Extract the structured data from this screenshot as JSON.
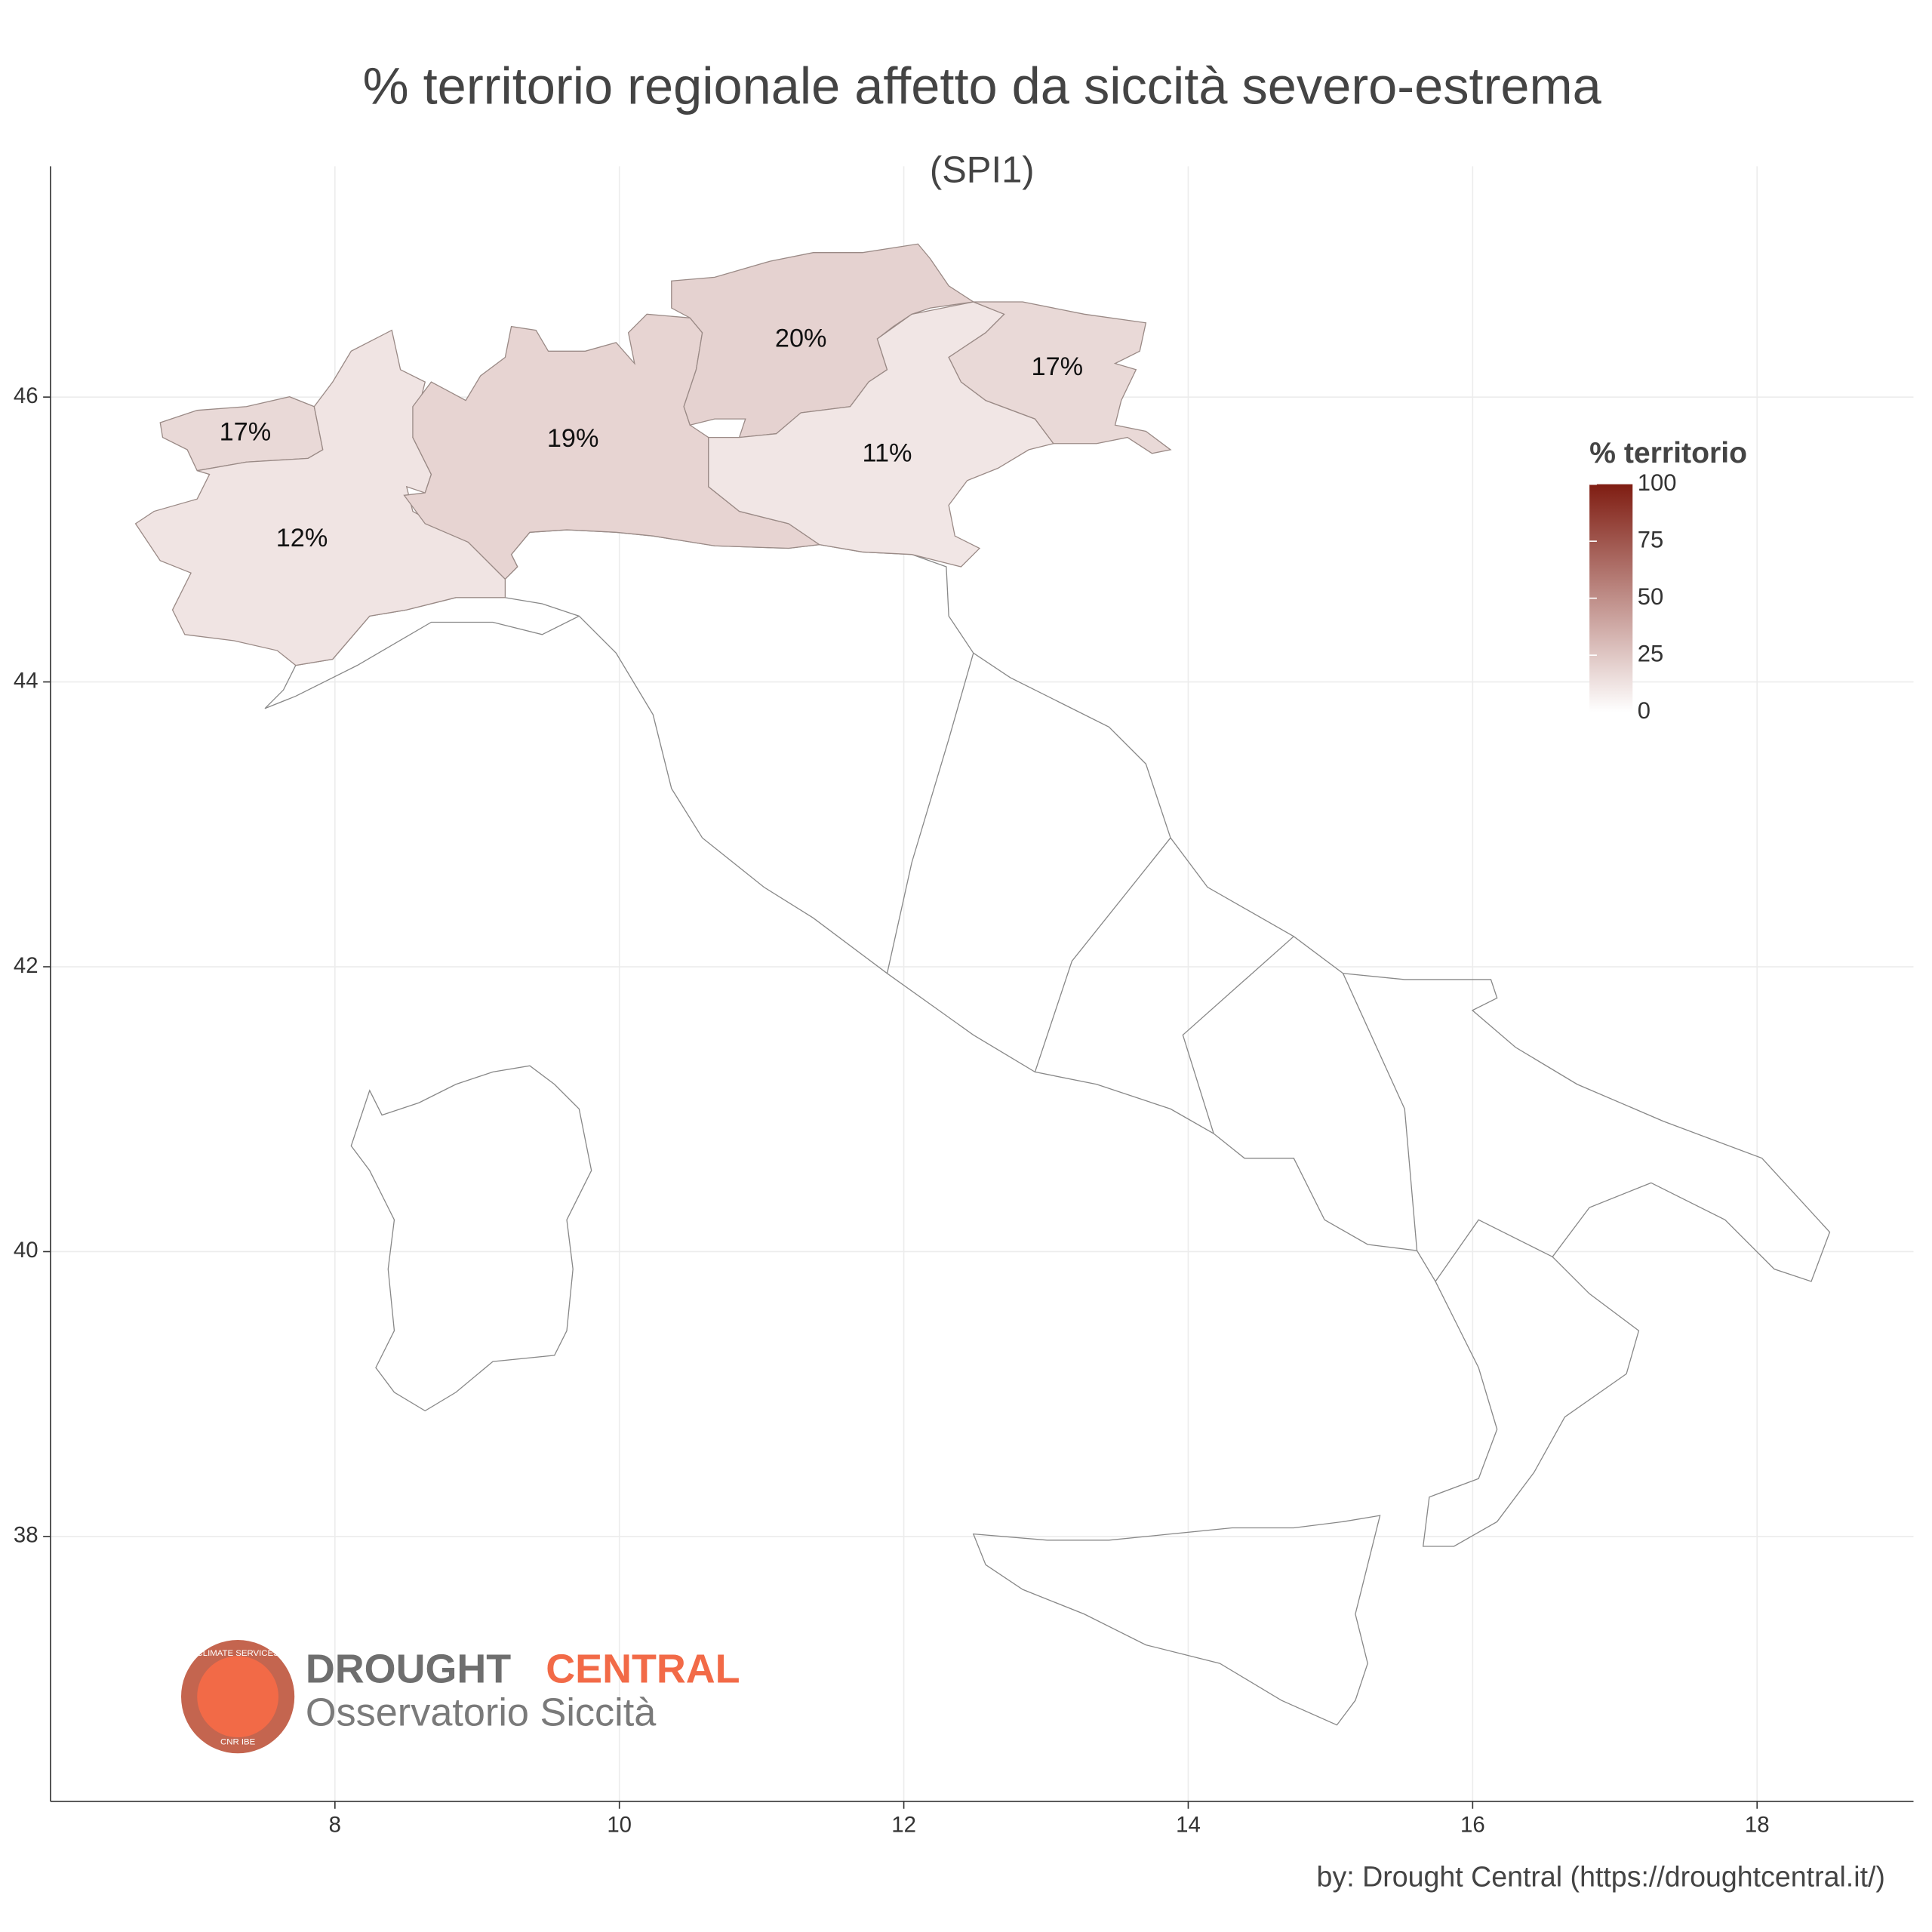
{
  "chart_data": {
    "type": "map",
    "title": "% territorio regionale affetto da siccità severo-estrema",
    "subtitle": "(SPI1)",
    "xlim": [
      6.0,
      19.1
    ],
    "ylim": [
      36.14,
      47.62
    ],
    "xticks": [
      8,
      10,
      12,
      14,
      16,
      18
    ],
    "yticks": [
      38,
      40,
      42,
      44,
      46
    ],
    "grid": true,
    "values": [
      17,
      12,
      19,
      20,
      11,
      17
    ],
    "value_labels": [
      "17%",
      "12%",
      "19%",
      "20%",
      "11%",
      "17%"
    ],
    "legend": {
      "title": "% territorio",
      "clim": [
        0,
        100
      ],
      "ticks": [
        0,
        25,
        50,
        75,
        100
      ],
      "low_color": "#ffffff",
      "high_color": "#7f1d12",
      "corner": "right"
    },
    "logo": {
      "brand_1": "DROUGHT",
      "brand_2": "CENTRAL",
      "subtitle": "Osservatorio Siccità",
      "ring_top": "CLIMATE SERVICES",
      "ring_bottom": "CNR IBE"
    },
    "caption": "by: Drought Central (https://droughtcentral.it/)"
  }
}
